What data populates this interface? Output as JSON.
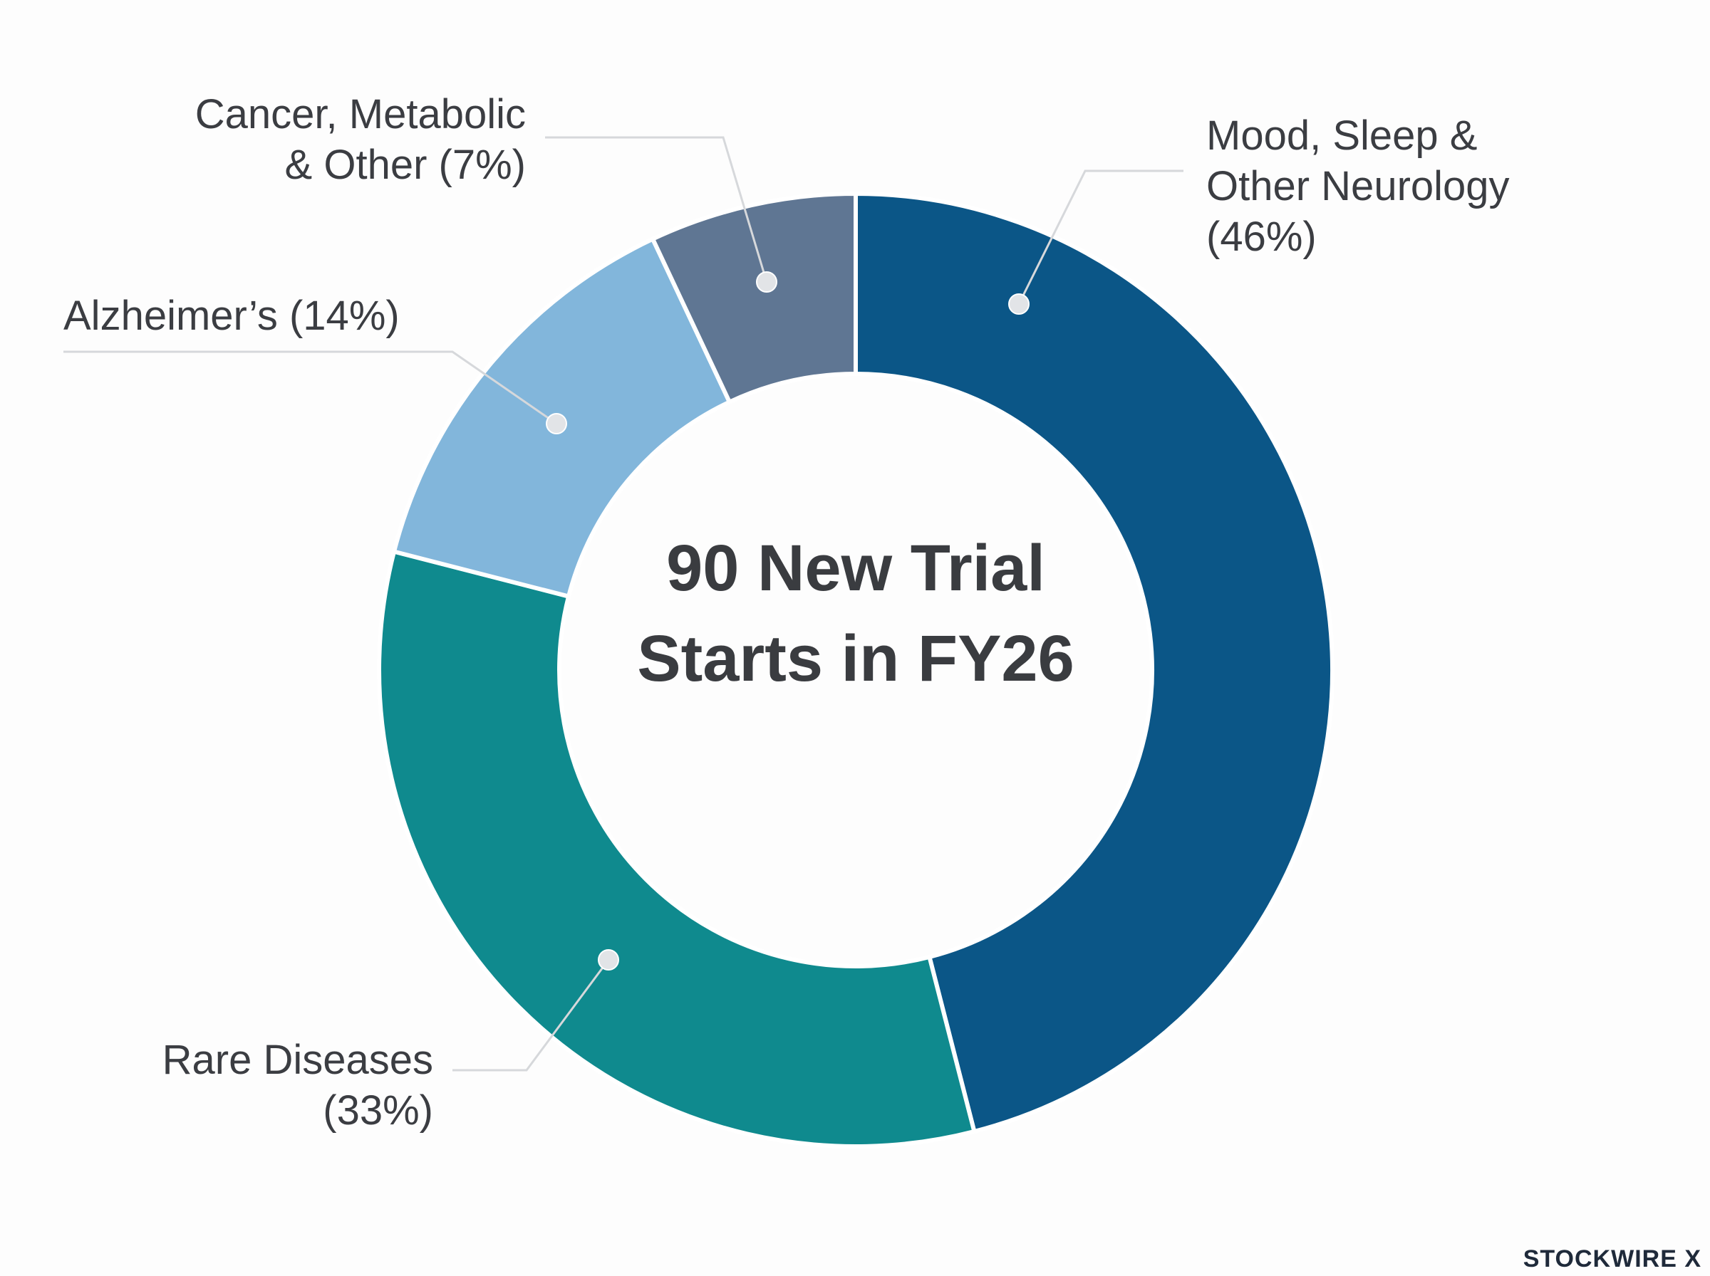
{
  "chart_data": {
    "type": "donut",
    "title": "90 New Trial Starts in FY26",
    "categories": [
      "Mood, Sleep & Other Neurology",
      "Rare Diseases",
      "Alzheimer’s",
      "Cancer, Metabolic & Other"
    ],
    "values": [
      46,
      33,
      14,
      7
    ],
    "value_labels": [
      "(46%)",
      "(33%)",
      "(14%)",
      "(7%)"
    ],
    "colors": [
      "#0b5687",
      "#0f8a8e",
      "#82b6db",
      "#5f7693"
    ]
  },
  "watermark": "STOCKWIRE X"
}
